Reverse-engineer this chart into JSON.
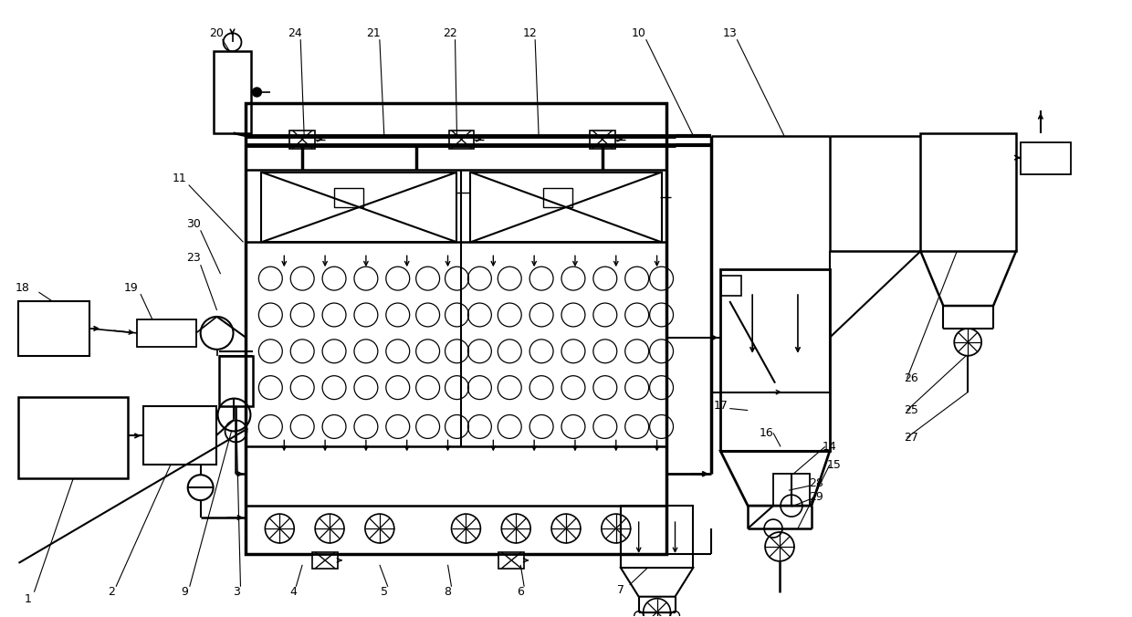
{
  "bg_color": "#ffffff",
  "lc": "#000000",
  "lw": 1.5,
  "fig_w": 12.4,
  "fig_h": 6.76,
  "dpi": 100
}
